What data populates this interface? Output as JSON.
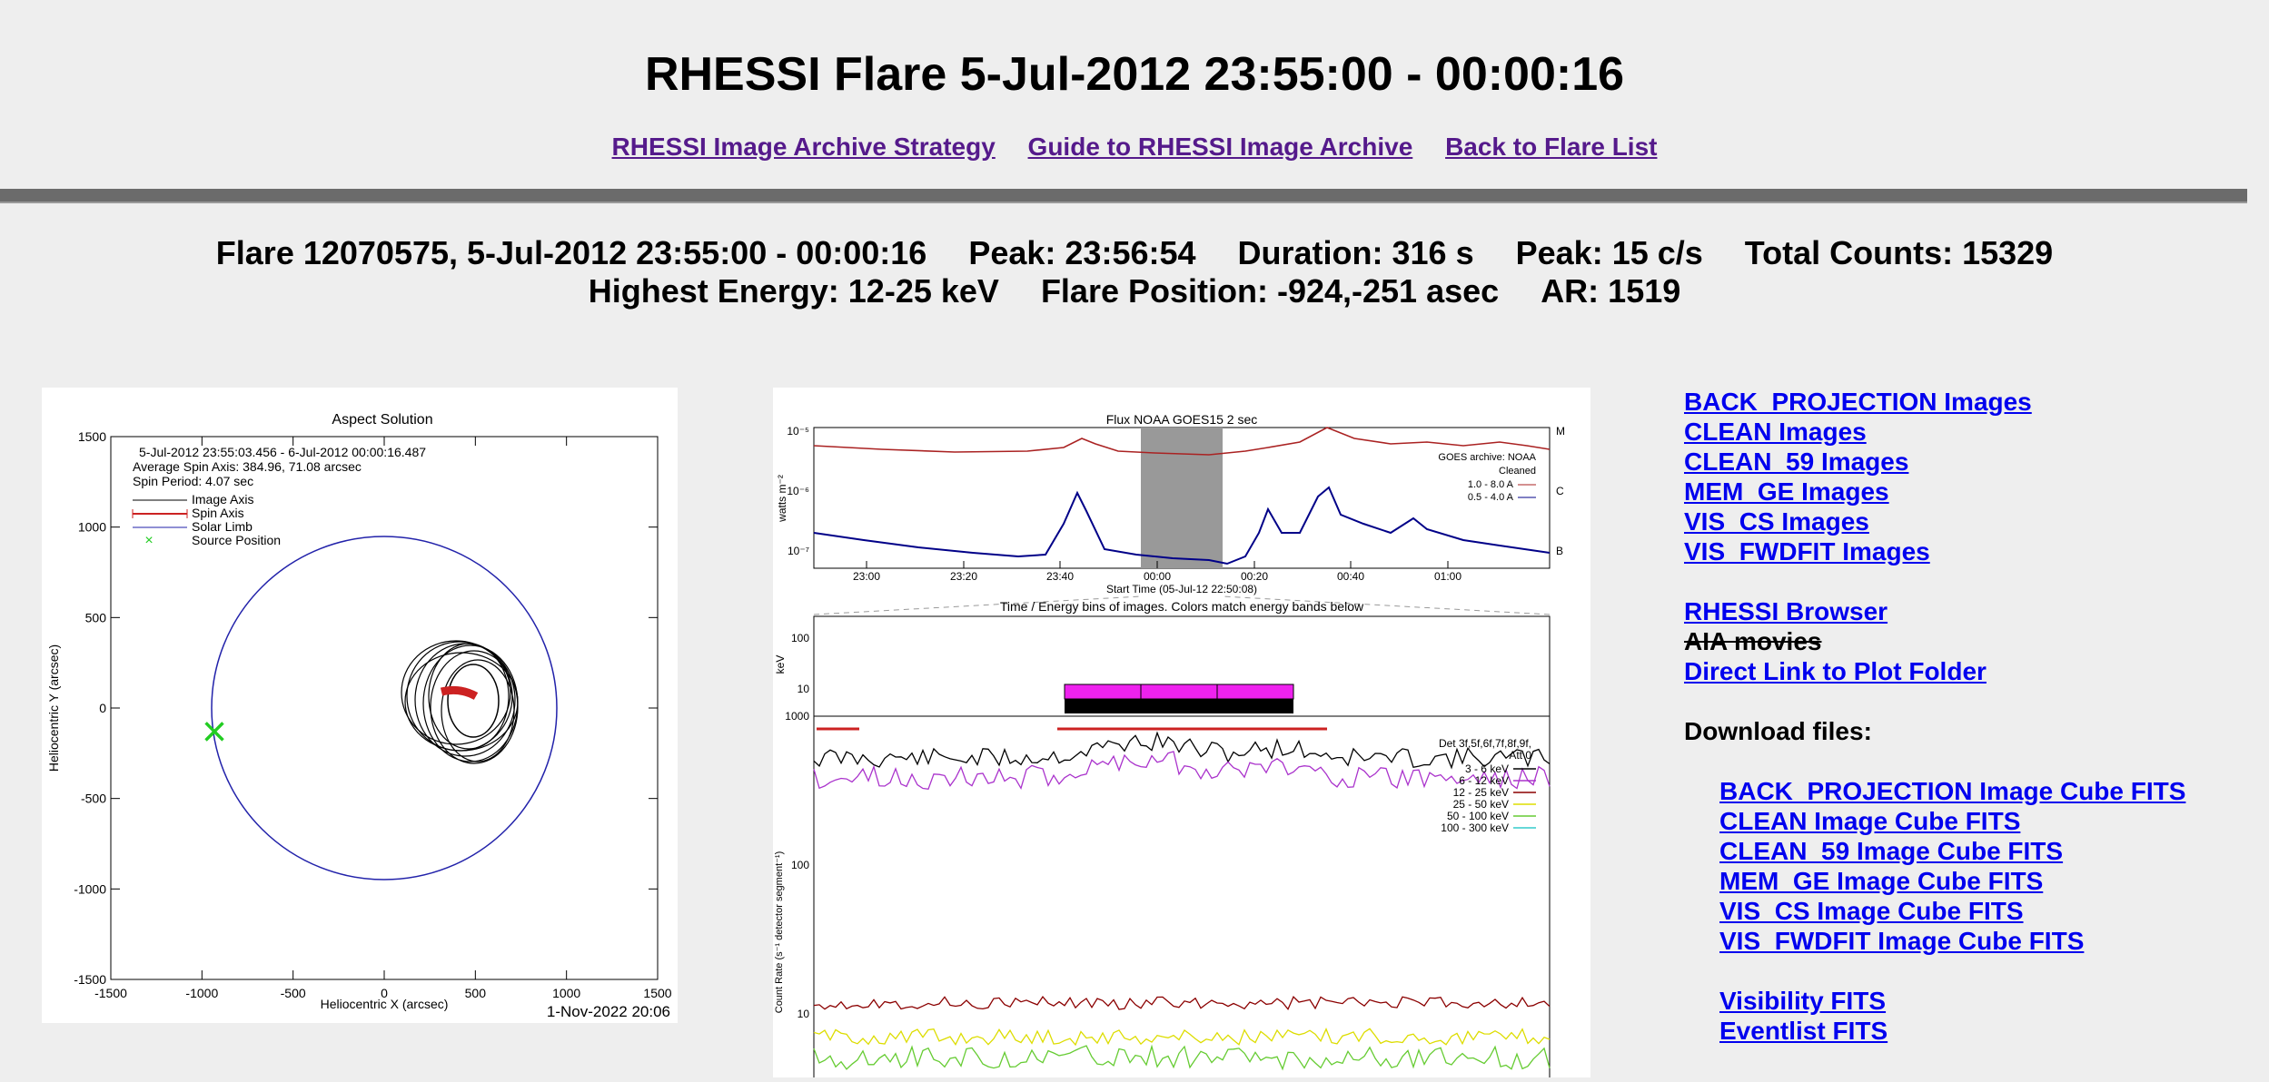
{
  "page_title": "RHESSI Flare 5-Jul-2012 23:55:00 - 00:00:16",
  "nav_links": [
    "RHESSI Image Archive Strategy",
    "Guide to RHESSI Image Archive",
    "Back to Flare List"
  ],
  "info": {
    "flare": "Flare 12070575, 5-Jul-2012 23:55:00 - 00:00:16",
    "peak_time": "Peak: 23:56:54",
    "duration": "Duration: 316 s",
    "peak_rate": "Peak: 15 c/s",
    "total_counts": "Total Counts: 15329",
    "highest_energy": "Highest Energy: 12-25 keV",
    "position": "Flare Position: -924,-251  asec",
    "ar": "AR: 1519"
  },
  "aspect_plot": {
    "title": "Aspect Solution",
    "time_range": "5-Jul-2012 23:55:03.456 -  6-Jul-2012 00:00:16.487",
    "spin_axis": "Average Spin Axis: 384.96, 71.08 arcsec",
    "spin_period": "Spin Period: 4.07 sec",
    "legend": [
      "Image Axis",
      "Spin Axis",
      "Solar Limb",
      "Source Position"
    ],
    "xlabel": "Heliocentric X (arcsec)",
    "ylabel": "Heliocentric Y (arcsec)",
    "ticks": [
      "-1500",
      "-1000",
      "-500",
      "0",
      "500",
      "1000",
      "1500"
    ],
    "footer": "1-Nov-2022 20:06",
    "colors": {
      "limb": "#2222aa",
      "source": "#22cc22",
      "spin": "#cc2222"
    }
  },
  "flux_plot": {
    "goes_title": "Flux  NOAA GOES15 2 sec",
    "goes_ylabel": "watts m⁻²",
    "goes_yticks": [
      "10⁻⁵",
      "10⁻⁶",
      "10⁻⁷"
    ],
    "goes_classes": [
      "M",
      "C",
      "B"
    ],
    "goes_xticks": [
      "23:00",
      "23:20",
      "23:40",
      "00:00",
      "00:20",
      "00:40",
      "01:00"
    ],
    "goes_xlabel": "Start Time (05-Jul-12 22:50:08)",
    "goes_legend": [
      "GOES archive: NOAA",
      "Cleaned",
      "1.0 - 8.0 A",
      "0.5 - 4.0 A"
    ],
    "bins_title": "Time / Energy bins of images.  Colors match energy bands below",
    "bins_ylabel": "keV",
    "bins_yticks": [
      "100",
      "10"
    ],
    "rate_yticks": [
      "1000",
      "100",
      "10"
    ],
    "rate_ylabel": "Count Rate (s⁻¹ detector segment⁻¹)",
    "rate_legend_header": [
      "Det 3f,5f,6f,7f,8f,9f,",
      "Att 0"
    ],
    "rate_legend": [
      "3 - 6 keV",
      "6 - 12 keV",
      "12 - 25 keV",
      "25 - 50 keV",
      "50 - 100 keV",
      "100 - 300 keV"
    ],
    "band_colors": [
      "#000000",
      "#aa33cc",
      "#8b0000",
      "#dddd00",
      "#66cc33",
      "#33cccc"
    ]
  },
  "side_links": {
    "images": [
      "BACK_PROJECTION Images",
      "CLEAN Images",
      "CLEAN_59 Images",
      "MEM_GE Images",
      "VIS_CS Images",
      "VIS_FWDFIT Images"
    ],
    "browser": "RHESSI Browser",
    "aia": "AIA movies",
    "direct": "Direct Link to Plot Folder",
    "download_label": "Download files:",
    "fits": [
      "BACK_PROJECTION Image Cube FITS",
      "CLEAN Image Cube FITS",
      "CLEAN_59 Image Cube FITS",
      "MEM_GE Image Cube FITS",
      "VIS_CS Image Cube FITS",
      "VIS_FWDFIT Image Cube FITS"
    ],
    "other": [
      "Visibility FITS",
      "Eventlist FITS"
    ]
  }
}
